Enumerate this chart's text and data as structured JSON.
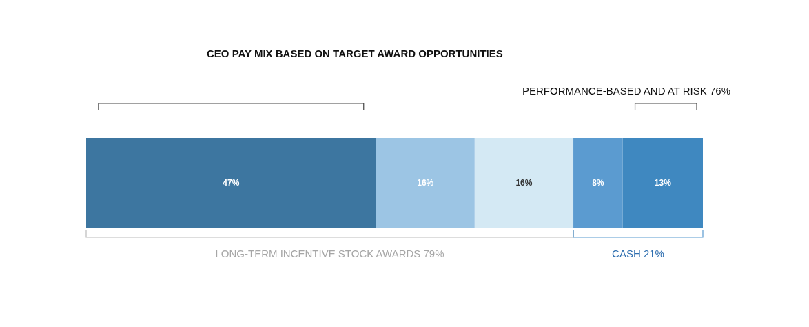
{
  "chart_data": {
    "type": "bar",
    "orientation": "horizontal",
    "stacked": true,
    "title": "CEO PAY MIX BASED ON TARGET AWARD OPPORTUNITIES",
    "categories": [
      null
    ],
    "tick_labels": false,
    "series": [
      {
        "color": "#3d76a0",
        "values": [
          47
        ],
        "value_labels": [
          "47%"
        ]
      },
      {
        "color": "#9cc5e4",
        "values": [
          16
        ],
        "value_labels": [
          "16%"
        ]
      },
      {
        "color": "#d4e9f4",
        "values": [
          16
        ],
        "value_labels": [
          "16%"
        ]
      },
      {
        "color": "#5b9bd0",
        "values": [
          8
        ],
        "value_labels": [
          "8%"
        ]
      },
      {
        "color": "#3f88c0",
        "values": [
          13
        ],
        "value_labels": [
          "13%"
        ]
      }
    ],
    "annotations": [
      "PERFORMANCE-BASED AND AT RISK 76%",
      "LONG-TERM INCENTIVE STOCK AWARDS 79%",
      "CASH 21%"
    ]
  }
}
